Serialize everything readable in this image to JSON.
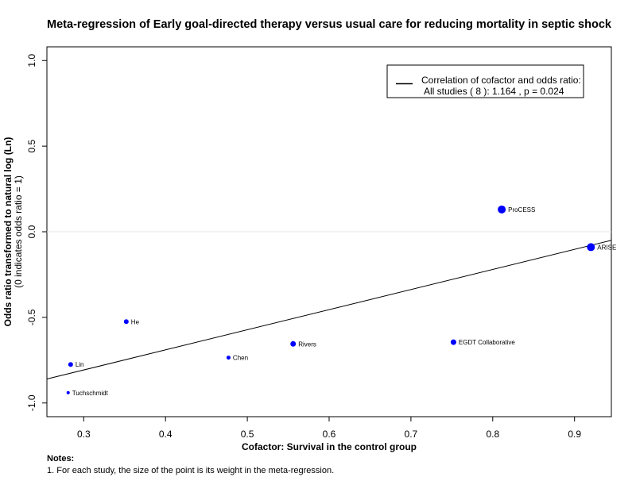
{
  "chart_data": {
    "type": "scatter",
    "title": "Meta-regression of  Early goal-directed therapy versus usual care for reducing mortality in septic shock",
    "xlabel": "Cofactor:  Survival in the control group",
    "ylabel": "Odds ratio transformed to natural log (Ln)",
    "ylabel_sub": "(0 indicates odds ratio = 1)",
    "xlim": [
      0.255,
      0.945
    ],
    "ylim": [
      -1.08,
      1.08
    ],
    "xticks": [
      "0.3",
      "0.4",
      "0.5",
      "0.6",
      "0.7",
      "0.8",
      "0.9"
    ],
    "yticks": [
      "-1.0",
      "-0.5",
      "0.0",
      "0.5",
      "1.0"
    ],
    "reference_line_y": 0,
    "regression_line": {
      "x": [
        0.255,
        0.945
      ],
      "y": [
        -0.86,
        -0.05
      ]
    },
    "points": [
      {
        "label": "Tuchschmidt",
        "x": 0.281,
        "y": -0.94,
        "weight": 1
      },
      {
        "label": "Lin",
        "x": 0.284,
        "y": -0.775,
        "weight": 2
      },
      {
        "label": "He",
        "x": 0.352,
        "y": -0.525,
        "weight": 2
      },
      {
        "label": "Chen",
        "x": 0.477,
        "y": -0.735,
        "weight": 1.5
      },
      {
        "label": "Rivers",
        "x": 0.556,
        "y": -0.655,
        "weight": 2.5
      },
      {
        "label": "EGDT Collaborative",
        "x": 0.752,
        "y": -0.645,
        "weight": 2.5
      },
      {
        "label": "ProCESS",
        "x": 0.811,
        "y": 0.13,
        "weight": 4
      },
      {
        "label": "ARISE",
        "x": 0.92,
        "y": -0.09,
        "weight": 4
      }
    ],
    "legend": {
      "position": "top-right",
      "line1": "Correlation of cofactor and odds ratio:",
      "line2": "All studies ( 8 ): 1.164 , p = 0.024"
    },
    "colors": {
      "points": "#0000ff",
      "regression": "#000000",
      "reference": "#e6e6e6"
    }
  },
  "notes": {
    "heading": "Notes:",
    "line1": "1. For each study, the size of the point is its weight in the meta-regression."
  }
}
